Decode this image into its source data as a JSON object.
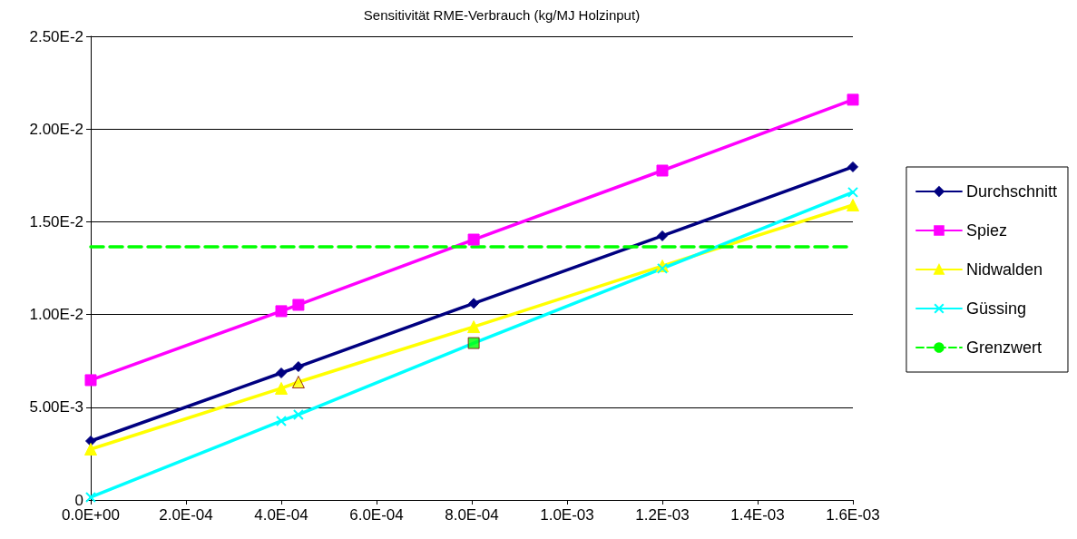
{
  "chart_data": {
    "type": "line",
    "title": "Sensitivität RME-Verbrauch (kg/MJ Holzinput)",
    "x": [
      0,
      0.0004,
      0.000436,
      0.000804,
      0.0012,
      0.0016
    ],
    "series": [
      {
        "name": "Durchschnitt",
        "color": "#000080",
        "marker": "diamond",
        "values": [
          0.00318,
          0.00685,
          0.00719,
          0.0106,
          0.01424,
          0.01796
        ]
      },
      {
        "name": "Spiez",
        "color": "#ff00ff",
        "marker": "square",
        "values": [
          0.00646,
          0.01018,
          0.01052,
          0.01404,
          0.01776,
          0.02158
        ]
      },
      {
        "name": "Nidwalden",
        "color": "#ffff00",
        "marker": "triangle",
        "values": [
          0.00274,
          0.00602,
          0.00636,
          0.00934,
          0.01262,
          0.0159
        ]
      },
      {
        "name": "Güssing",
        "color": "#00ffff",
        "marker": "cross",
        "values": [
          0.00015,
          0.00426,
          0.0046,
          0.00846,
          0.01248,
          0.01659
        ]
      },
      {
        "name": "Grenzwert",
        "color": "#00ff00",
        "marker": "none",
        "line_style": "dashed",
        "x": [
          0,
          0.0016
        ],
        "values": [
          0.01365,
          0.01365
        ]
      },
      {
        "type": "scatter",
        "color": "#ffff00",
        "marker": "triangle",
        "x": [
          0.000436
        ],
        "values": [
          0.00636
        ]
      },
      {
        "type": "scatter",
        "color": "#00ff00",
        "marker": "square",
        "x": [
          0.000804
        ],
        "values": [
          0.00846
        ]
      }
    ],
    "xlim": [
      0,
      0.0016
    ],
    "xticks": [
      {
        "value": 0,
        "label": "0.0E+00"
      },
      {
        "value": 0.0002,
        "label": "2.0E-04"
      },
      {
        "value": 0.0004,
        "label": "4.0E-04"
      },
      {
        "value": 0.0006,
        "label": "6.0E-04"
      },
      {
        "value": 0.0008,
        "label": "8.0E-04"
      },
      {
        "value": 0.001,
        "label": "1.0E-03"
      },
      {
        "value": 0.0012,
        "label": "1.2E-03"
      },
      {
        "value": 0.0014,
        "label": "1.4E-03"
      },
      {
        "value": 0.0016,
        "label": "1.6E-03"
      }
    ],
    "ylim": [
      0,
      0.025
    ],
    "yticks": [
      0,
      {
        "value": 0.005,
        "label": "5.00E-3"
      },
      {
        "value": 0.01,
        "label": "1.00E-2"
      },
      {
        "value": 0.015,
        "label": "1.50E-2"
      },
      {
        "value": 0.02,
        "label": "2.00E-2"
      },
      {
        "value": 0.025,
        "label": "2.50E-2"
      }
    ],
    "grid": "y",
    "legend": "right",
    "line_style": "solid"
  }
}
